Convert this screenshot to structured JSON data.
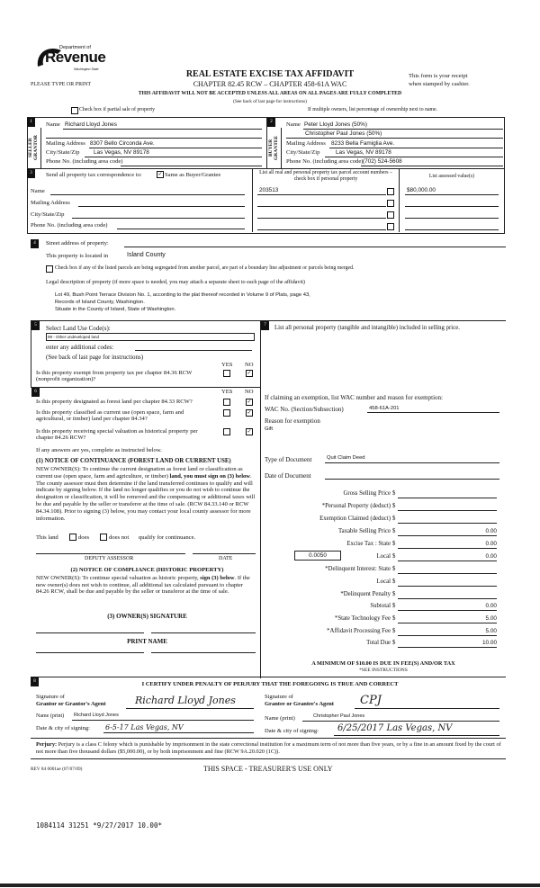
{
  "header": {
    "logo_dept": "Department of",
    "logo_name": "Revenue",
    "logo_state": "Washington State",
    "please": "PLEASE TYPE OR PRINT",
    "title": "REAL ESTATE EXCISE TAX AFFIDAVIT",
    "chapter": "CHAPTER 82.45 RCW – CHAPTER 458-61A WAC",
    "receipt1": "This form is your receipt",
    "receipt2": "when stamped by cashier.",
    "warning": "THIS AFFIDAVIT WILL NOT BE ACCEPTED UNLESS ALL AREAS ON ALL PAGES ARE FULLY COMPLETED",
    "see_back": "(See back of last page for instructions)",
    "partial_label": "Check box if partial sale of property",
    "multiple_owners": "If multiple owners, list percentage of ownership next to name."
  },
  "seller": {
    "num": "1",
    "side": "SELLER GRANTOR",
    "name_label": "Name",
    "name": "Richard Lloyd Jones",
    "mailing_label": "Mailing Address",
    "mailing": "8307 Bello Circonda Ave.",
    "city_label": "City/State/Zip",
    "city": "Las Vegas, NV 89178",
    "phone_label": "Phone No. (including area code)",
    "phone": ""
  },
  "buyer": {
    "num": "2",
    "side": "BUYER GRANTEE",
    "name_label": "Name",
    "name": "Peter Lloyd Jones (50%)",
    "name2": "Christopher Paul Jones (50%)",
    "mailing_label": "Mailing Address",
    "mailing": "8233 Bella Famiglia Ave.",
    "city_label": "City/State/Zip",
    "city": "Las Vegas, NV 89178",
    "phone_label": "Phone No. (including area code)",
    "phone": "(702) 524-5608"
  },
  "section3": {
    "num": "3",
    "send_label": "Send all property tax correspondence to:",
    "same_as_buyer": true,
    "same_label": "Same as Buyer/Grantee",
    "name_label": "Name",
    "mailing_label": "Mailing Address",
    "city_label": "City/State/Zip",
    "phone_label": "Phone No. (including area code)",
    "parcel_header": "List all real and personal property tax parcel account numbers – check box if personal property",
    "value_header": "List assessed value(s)",
    "parcels": [
      {
        "number": "203513",
        "personal": false,
        "value": "$80,000.00"
      },
      {
        "number": "",
        "personal": false,
        "value": ""
      },
      {
        "number": "",
        "personal": false,
        "value": ""
      },
      {
        "number": "",
        "personal": false,
        "value": ""
      }
    ]
  },
  "section4": {
    "num": "4",
    "street_label": "Street address of property:",
    "located_label": "This property is located in",
    "located": "Island County",
    "segregated_label": "Check box if any of the listed parcels are being segregated from another parcel, are part of a boundary line adjustment or parcels being merged.",
    "legal_label": "Legal description of property (if more space is needed, you may attach a separate sheet to each page of the affidavit)",
    "legal": [
      "Lot 49, Bush Point Terrace Division No. 1, according to  the plat thereof recorded in Volume 9 of Plats, page 43,",
      "Records of Island County, Washington.",
      "Situate in the County of Island, State of Washington."
    ]
  },
  "section5": {
    "num": "5",
    "select_label": "Select Land Use Code(s):",
    "land_use": "99 - Other undeveloped land",
    "additional_label": "enter any additional codes:",
    "see_back": "(See back of last page for instructions)",
    "yes": "YES",
    "no": "NO",
    "exempt_q": "Is this property exempt from property tax per chapter 84.36 RCW (nonprofit organization)?",
    "exempt": "NO"
  },
  "section6": {
    "num": "6",
    "yes": "YES",
    "no": "NO",
    "questions": [
      {
        "text": "Is this property designated as forest land per chapter 84.33 RCW?",
        "answer": "NO"
      },
      {
        "text": "Is this property classified as current use (open space, farm and agricultural, or timber) land per chapter 84.34?",
        "answer": "NO"
      },
      {
        "text": "Is this property receiving special valuation as historical property per chapter 84.26 RCW?",
        "answer": "NO"
      }
    ],
    "if_yes": "If any answers are yes, complete as instructed below.",
    "notice1_title": "(1) NOTICE OF CONTINUANCE  (FOREST LAND OR CURRENT USE)",
    "notice1_a": "NEW OWNER(S): To continue the current designation as forest land or classification as current use (open space, farm and agriculture, or timber) ",
    "notice1_bold": "land, you must sign on (3) below",
    "notice1_b": ". The county assessor must then determine if the land transferred continues to qualify and will indicate by signing below. If the land no longer qualifies or you do not wish to continue the designation or classification, it will be removed and the compensating or additional taxes will be due and payable by the seller or transferor at the time of sale. (RCW 84.33.140 or RCW 84.34.108). Prior to signing (3) below, you may contact your local county assessor for more information.",
    "this_land": "This land",
    "does": "does",
    "does_not": "does not",
    "qualify": "qualify for continuance.",
    "deputy": "DEPUTY ASSESSOR",
    "date": "DATE",
    "notice2_title": "(2) NOTICE OF COMPLIANCE (HISTORIC PROPERTY)",
    "notice2_a": "NEW OWNER(S): To continue special valuation as historic property, ",
    "notice2_bold": "sign (3) below",
    "notice2_b": ". If the new owner(s) does not wish to continue, all additional tax calculated pursuant to chapter 84.26 RCW, shall be due and payable by the seller or transferor at the time of sale.",
    "owner_sig": "(3)  OWNER(S) SIGNATURE",
    "print_name": "PRINT NAME"
  },
  "section7": {
    "num": "7",
    "personal_label": "List all  personal property (tangible and intangible) included in selling price.",
    "exemption_label": "If claiming an exemption, list WAC number and reason for exemption:",
    "wac_label": "WAC No. (Section/Subsection)",
    "wac": "458-61A-201",
    "reason_label": "Reason for exemption",
    "reason": "Gift",
    "doc_type_label": "Type of Document",
    "doc_type": "Quit Claim Deed",
    "doc_date_label": "Date of Document",
    "doc_date": "",
    "local_rate": "0.0050",
    "fees": [
      {
        "label": "Gross Selling Price",
        "value": ""
      },
      {
        "label": "*Personal Property (deduct)",
        "value": ""
      },
      {
        "label": "Exemption Claimed (deduct)",
        "value": ""
      },
      {
        "label": "Taxable Selling Price",
        "value": "0.00"
      },
      {
        "label": "Excise Tax : State",
        "value": "0.00"
      },
      {
        "label": "Local",
        "value": "0.00"
      },
      {
        "label": "*Delinquent Interest: State",
        "value": ""
      },
      {
        "label": "Local",
        "value": ""
      },
      {
        "label": "*Delinquent Penalty",
        "value": ""
      },
      {
        "label": "Subtotal",
        "value": "0.00"
      },
      {
        "label": "*State Technology Fee",
        "value": "5.00"
      },
      {
        "label": "*Affidavit Processing Fee",
        "value": "5.00"
      },
      {
        "label": "Total Due",
        "value": "10.00"
      }
    ],
    "currency": "$",
    "minimum": "A MINIMUM OF $10.00 IS DUE IN FEE(S) AND/OR TAX",
    "see_instr": "*SEE INSTRUCTIONS"
  },
  "section8": {
    "num": "8",
    "certify": "I CERTIFY UNDER PENALTY OF PERJURY THAT THE FOREGOING IS TRUE AND CORRECT",
    "sig_of": "Signature of",
    "grantor_agent": "Grantor or Grantor's Agent",
    "grantee_agent": "Grantee or Grantee's Agent",
    "grantor_sig": "Richard Lloyd Jones",
    "grantee_sig": "CPJ",
    "name_print_label": "Name (print)",
    "grantor_name": "Richard Lloyd Jones",
    "grantee_name": "Christopher Paul Jones",
    "date_label": "Date & city of signing:",
    "grantor_date": "6-5-17   Las Vegas, NV",
    "grantee_date": "6/25/2017   Las Vegas, NV"
  },
  "footer": {
    "perjury_bold": "Perjury:",
    "perjury": " Perjury is a class C felony which is punishable by imprisonment in the state correctional institution for a maximum term of not more than five years, or by a fine in an amount fixed by the court of not more than five thousand dollars ($5,000.00), or by both imprisonment and fine (RCW 9A.20.020 (1C)).",
    "rev": "REV 84 0001ae (07/07/09)",
    "treasurer": "THIS SPACE - TREASURER'S USE ONLY",
    "stamp": "1084114 31251 *9/27/2017 10.00*"
  }
}
